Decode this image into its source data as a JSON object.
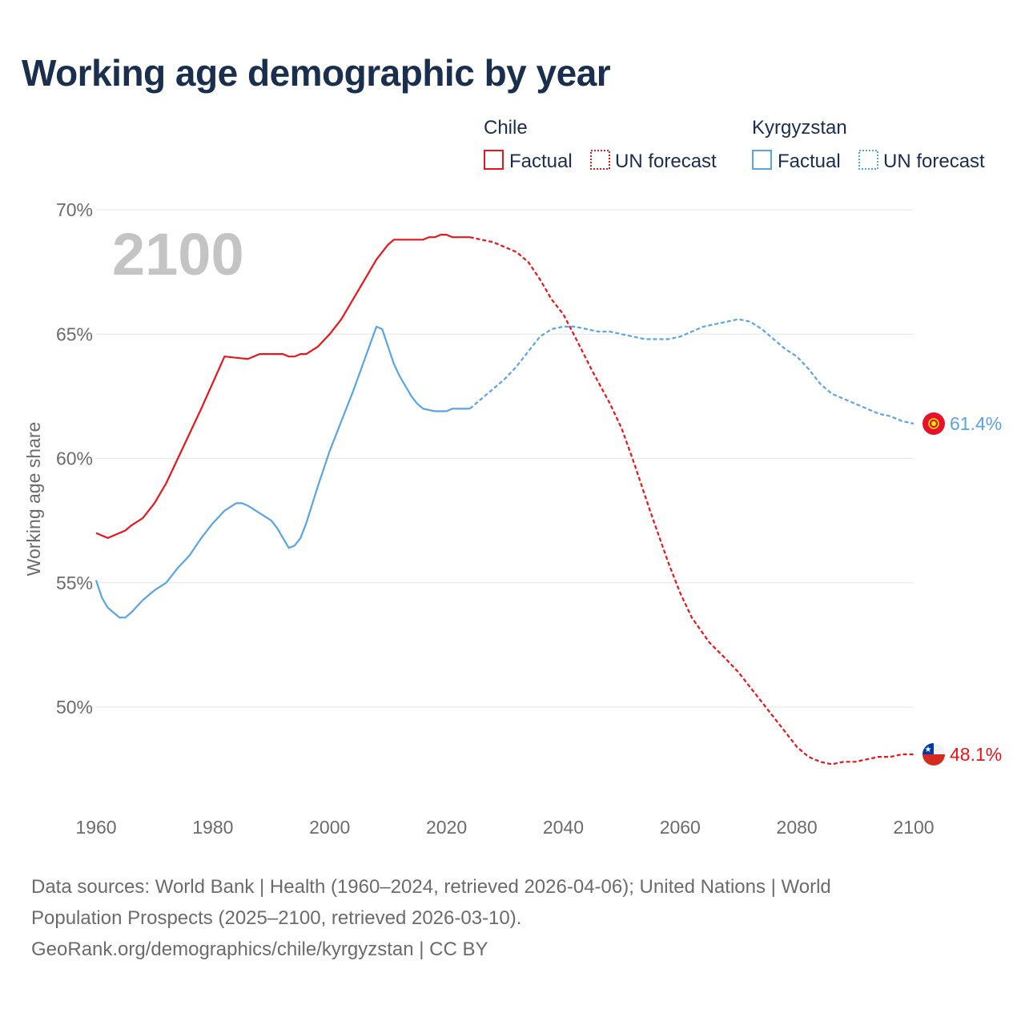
{
  "title": "Working age demographic by year",
  "chart_data": {
    "type": "line",
    "title": "Working age demographic by year",
    "xlabel": "",
    "ylabel": "Working age share",
    "xlim": [
      1960,
      2100
    ],
    "ylim": [
      46,
      70
    ],
    "x_ticks": [
      1960,
      1980,
      2000,
      2020,
      2040,
      2060,
      2080,
      2100
    ],
    "y_ticks": [
      50,
      55,
      60,
      65,
      70
    ],
    "y_tick_suffix": "%",
    "grid": true,
    "current_year": "2100",
    "legend": {
      "groups": [
        {
          "country": "Chile",
          "factual_label": "Factual",
          "forecast_label": "UN forecast"
        },
        {
          "country": "Kyrgyzstan",
          "factual_label": "Factual",
          "forecast_label": "UN forecast"
        }
      ]
    },
    "series": [
      {
        "name": "Chile",
        "color": "#e8151b",
        "end_label": "48.1%",
        "factual": {
          "x": [
            1960,
            1962,
            1964,
            1965,
            1966,
            1968,
            1970,
            1972,
            1975,
            1978,
            1982,
            1986,
            1988,
            1990,
            1992,
            1993,
            1994,
            1995,
            1996,
            1998,
            2000,
            2002,
            2004,
            2006,
            2008,
            2009,
            2010,
            2011,
            2012,
            2014,
            2016,
            2017,
            2018,
            2019,
            2020,
            2021,
            2022,
            2023,
            2024
          ],
          "y": [
            57.0,
            56.8,
            57.0,
            57.1,
            57.3,
            57.6,
            58.2,
            59.0,
            60.5,
            62.0,
            64.1,
            64.0,
            64.2,
            64.2,
            64.2,
            64.1,
            64.1,
            64.2,
            64.2,
            64.5,
            65.0,
            65.6,
            66.4,
            67.2,
            68.0,
            68.3,
            68.6,
            68.8,
            68.8,
            68.8,
            68.8,
            68.9,
            68.9,
            69.0,
            69.0,
            68.9,
            68.9,
            68.9,
            68.9
          ]
        },
        "forecast": {
          "x": [
            2024,
            2026,
            2028,
            2030,
            2032,
            2034,
            2036,
            2038,
            2040,
            2042,
            2045,
            2048,
            2050,
            2052,
            2055,
            2058,
            2060,
            2062,
            2065,
            2068,
            2070,
            2072,
            2075,
            2078,
            2080,
            2082,
            2084,
            2086,
            2088,
            2090,
            2092,
            2094,
            2096,
            2098,
            2100
          ],
          "y": [
            68.9,
            68.8,
            68.7,
            68.5,
            68.3,
            67.9,
            67.2,
            66.4,
            65.8,
            64.9,
            63.5,
            62.2,
            61.2,
            59.9,
            57.8,
            55.8,
            54.6,
            53.6,
            52.6,
            51.9,
            51.4,
            50.8,
            49.9,
            49.0,
            48.4,
            48.0,
            47.8,
            47.7,
            47.8,
            47.8,
            47.9,
            48.0,
            48.0,
            48.1,
            48.1
          ]
        }
      },
      {
        "name": "Kyrgyzstan",
        "color": "#5aa4e4",
        "end_label": "61.4%",
        "factual": {
          "x": [
            1960,
            1961,
            1962,
            1963,
            1964,
            1965,
            1966,
            1968,
            1970,
            1972,
            1974,
            1976,
            1978,
            1980,
            1982,
            1984,
            1985,
            1986,
            1988,
            1990,
            1991,
            1992,
            1993,
            1994,
            1995,
            1996,
            1998,
            2000,
            2002,
            2004,
            2006,
            2008,
            2009,
            2010,
            2011,
            2012,
            2014,
            2015,
            2016,
            2018,
            2019,
            2020,
            2021,
            2022,
            2023,
            2024
          ],
          "y": [
            55.1,
            54.4,
            54.0,
            53.8,
            53.6,
            53.6,
            53.8,
            54.3,
            54.7,
            55.0,
            55.6,
            56.1,
            56.8,
            57.4,
            57.9,
            58.2,
            58.2,
            58.1,
            57.8,
            57.5,
            57.2,
            56.8,
            56.4,
            56.5,
            56.8,
            57.4,
            58.9,
            60.3,
            61.5,
            62.7,
            64.0,
            65.3,
            65.2,
            64.5,
            63.8,
            63.3,
            62.5,
            62.2,
            62.0,
            61.9,
            61.9,
            61.9,
            62.0,
            62.0,
            62.0,
            62.0
          ]
        },
        "forecast": {
          "x": [
            2024,
            2026,
            2028,
            2030,
            2032,
            2034,
            2036,
            2038,
            2040,
            2042,
            2044,
            2046,
            2048,
            2050,
            2052,
            2054,
            2056,
            2058,
            2060,
            2062,
            2064,
            2066,
            2068,
            2070,
            2072,
            2074,
            2076,
            2078,
            2080,
            2082,
            2084,
            2086,
            2088,
            2090,
            2092,
            2094,
            2096,
            2098,
            2100
          ],
          "y": [
            62.0,
            62.4,
            62.8,
            63.2,
            63.7,
            64.3,
            64.9,
            65.2,
            65.3,
            65.3,
            65.2,
            65.1,
            65.1,
            65.0,
            64.9,
            64.8,
            64.8,
            64.8,
            64.9,
            65.1,
            65.3,
            65.4,
            65.5,
            65.6,
            65.5,
            65.2,
            64.8,
            64.4,
            64.1,
            63.6,
            63.0,
            62.6,
            62.4,
            62.2,
            62.0,
            61.8,
            61.7,
            61.5,
            61.4
          ]
        }
      }
    ]
  },
  "footer": {
    "line1": "Data sources: World Bank | Health (1960–2024, retrieved 2026-04-06); United Nations | World",
    "line2": "Population Prospects (2025–2100, retrieved 2026-03-10).",
    "line3": "GeoRank.org/demographics/chile/kyrgyzstan | CC BY"
  }
}
